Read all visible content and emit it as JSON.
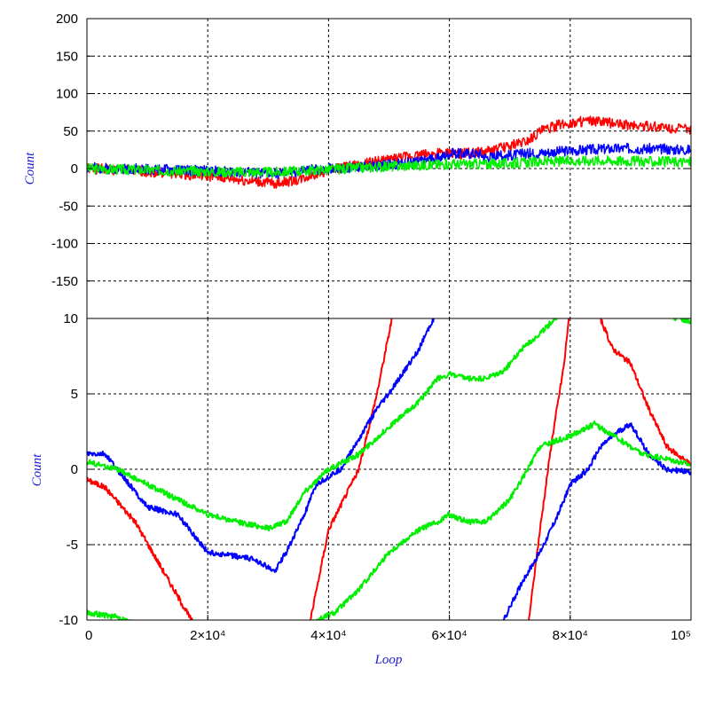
{
  "chart_data": [
    {
      "type": "line",
      "title": "",
      "xlabel": "",
      "ylabel": "Count",
      "xlim": [
        0,
        100000
      ],
      "ylim": [
        -200,
        200
      ],
      "yticks": [
        "-150",
        "-100",
        "-50",
        "0",
        "50",
        "100",
        "150",
        "200"
      ],
      "ytick_values": [
        -150,
        -100,
        -50,
        0,
        50,
        100,
        150,
        200
      ],
      "grid": true,
      "series": [
        {
          "color": "#ff0000",
          "x": [
            0,
            10000,
            20000,
            25000,
            31000,
            35000,
            38000,
            40000,
            45000,
            50000,
            55000,
            58000,
            62000,
            66000,
            70000,
            73000,
            75000,
            78000,
            82000,
            85000,
            90000,
            95000,
            100000
          ],
          "y": [
            0,
            -4,
            -10,
            -15,
            -20,
            -15,
            -7,
            -2,
            5,
            12,
            18,
            20,
            20,
            22,
            30,
            38,
            50,
            58,
            63,
            62,
            58,
            55,
            52
          ]
        },
        {
          "color": "#0000ff",
          "x": [
            0,
            10000,
            20000,
            25000,
            31000,
            35000,
            38000,
            40000,
            45000,
            50000,
            55000,
            58000,
            60000,
            65000,
            66000,
            70000,
            75000,
            80000,
            85000,
            90000,
            95000,
            100000
          ],
          "y": [
            1,
            -1,
            -3,
            -5,
            -7,
            -4,
            -1,
            0,
            2,
            5,
            10,
            13,
            20,
            20,
            15,
            18,
            21,
            24,
            26,
            27,
            26,
            25
          ]
        },
        {
          "color": "#00ee00",
          "x": [
            0,
            10000,
            20000,
            31000,
            40000,
            50000,
            60000,
            66000,
            70000,
            75000,
            80000,
            85000,
            90000,
            95000,
            100000
          ],
          "y": [
            0,
            -2,
            -4,
            -5,
            -1,
            3,
            6,
            6,
            7,
            9,
            10,
            11,
            10,
            9,
            9
          ]
        }
      ]
    },
    {
      "type": "line",
      "title": "",
      "xlabel": "Loop",
      "ylabel": "Count",
      "xlim": [
        0,
        100000
      ],
      "ylim": [
        -10,
        10
      ],
      "yticks": [
        "-10",
        "-5",
        "0",
        "5",
        "10"
      ],
      "ytick_values": [
        -10,
        -5,
        0,
        5,
        10
      ],
      "xticks": [
        "0",
        "2×10⁴",
        "4×10⁴",
        "6×10⁴",
        "8×10⁴",
        "10⁵"
      ],
      "xtick_values": [
        0,
        20000,
        40000,
        60000,
        80000,
        100000
      ],
      "grid": true,
      "series": [
        {
          "color": "#ff0000",
          "x": [
            0,
            3000,
            8000,
            13000,
            18000,
            23000,
            35000,
            37000,
            40000,
            45000,
            48000,
            51000
          ],
          "y": [
            -0.7,
            -1.2,
            -3.5,
            -7,
            -10.5,
            -12,
            -12,
            -10,
            -4,
            0,
            5,
            11
          ]
        },
        {
          "color": "#ff0000",
          "x": [
            73000,
            75000,
            77000,
            79000,
            80000,
            84000,
            87000,
            90000,
            93000,
            96000,
            100000
          ],
          "y": [
            -10.5,
            -4,
            2,
            7,
            11,
            11,
            8,
            7,
            4,
            1.5,
            0.3
          ]
        },
        {
          "color": "#0000ff",
          "x": [
            0,
            3000,
            5000,
            8000,
            10000,
            15000,
            20000,
            25000,
            28000,
            31000,
            33000,
            36000,
            38000,
            40000,
            42000,
            45000,
            48000,
            50000,
            55000,
            58000
          ],
          "y": [
            1,
            1,
            0,
            -1.5,
            -2.5,
            -3,
            -5.5,
            -5.8,
            -6,
            -6.8,
            -5.5,
            -3,
            -1,
            -0.5,
            0,
            2,
            4,
            5,
            8,
            10.5
          ]
        },
        {
          "color": "#0000ff",
          "x": [
            66000,
            69000,
            72000,
            75000,
            78000,
            80000,
            83000,
            85000,
            88000,
            90000,
            93000,
            96000,
            100000
          ],
          "y": [
            -12,
            -10,
            -7.5,
            -5.5,
            -3,
            -1,
            0,
            1.5,
            2.5,
            3,
            1,
            0,
            -0.2
          ]
        },
        {
          "color": "#00ee00",
          "x": [
            0,
            5000,
            10000,
            15000,
            20000,
            25000,
            30000,
            33000,
            36000,
            40000,
            45000,
            50000,
            55000,
            58000,
            60000,
            63000,
            66000,
            69000,
            72000,
            75000,
            80000,
            82000
          ],
          "y": [
            0.5,
            0,
            -1,
            -2,
            -3,
            -3.5,
            -3.9,
            -3.5,
            -1.5,
            0,
            1,
            2.8,
            4.5,
            6,
            6.3,
            6,
            6,
            6.5,
            8,
            9,
            11,
            11.5
          ]
        },
        {
          "color": "#00ee00",
          "x": [
            0,
            5000,
            10000,
            15000,
            20000,
            25000,
            30000,
            35000,
            38000,
            41000,
            45000,
            50000,
            55000,
            58000,
            60000,
            63000,
            66000,
            70000,
            73000,
            75000,
            80000,
            84000,
            88000,
            92000,
            96000,
            100000
          ],
          "y": [
            -9.5,
            -9.8,
            -10.5,
            -11.5,
            -12,
            -12,
            -12,
            -11,
            -10,
            -9.5,
            -8,
            -5.5,
            -4,
            -3.5,
            -3,
            -3.5,
            -3.5,
            -2,
            0,
            1.5,
            2.2,
            3,
            2,
            1,
            0.7,
            0.3
          ]
        },
        {
          "color": "#00ee00",
          "x": [
            90000,
            93000,
            96000,
            100000
          ],
          "y": [
            10.5,
            10.3,
            10.2,
            9.8
          ]
        }
      ]
    }
  ]
}
